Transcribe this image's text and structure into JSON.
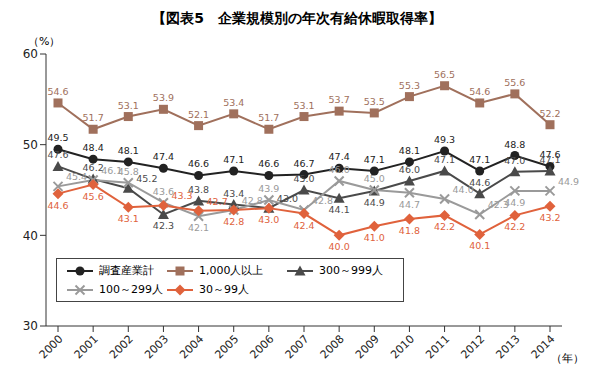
{
  "chart_data": {
    "type": "line",
    "title": "【図表5　企業規模別の年次有給休暇取得率】",
    "ylabel": "（%）",
    "xlabel": "（年）",
    "categories": [
      "2000",
      "2001",
      "2002",
      "2003",
      "2004",
      "2005",
      "2006",
      "2007",
      "2008",
      "2009",
      "2010",
      "2011",
      "2012",
      "2013",
      "2014"
    ],
    "ylim": [
      30,
      60
    ],
    "yticks": [
      30,
      40,
      50,
      60
    ],
    "grid": false,
    "legend": "lower left",
    "data_labels": true,
    "series": [
      {
        "name": "調査産業計",
        "color": "#222222",
        "marker": "circle",
        "values": [
          49.5,
          48.4,
          48.1,
          47.4,
          46.6,
          47.1,
          46.6,
          46.7,
          47.4,
          47.1,
          48.1,
          49.3,
          47.1,
          48.8,
          47.6
        ],
        "value_labels": [
          "49.5",
          "48.4",
          "48.1",
          "47.4",
          "46.6",
          "47.1",
          "46.6",
          "46.7",
          "47.4",
          "47.1",
          "48.1",
          "49.3",
          "47.1",
          "48.8",
          "47.6"
        ]
      },
      {
        "name": "1,000人以上",
        "color": "#a0705c",
        "marker": "square",
        "values": [
          54.6,
          51.7,
          53.1,
          53.9,
          52.1,
          53.4,
          51.7,
          53.1,
          53.7,
          53.5,
          55.3,
          56.5,
          54.6,
          55.6,
          52.2
        ],
        "value_labels": [
          "54.6",
          "51.7",
          "53.1",
          "53.9",
          "52.1",
          "53.4",
          "51.7",
          "53.1",
          "53.7",
          "53.5",
          "55.3",
          "56.5",
          "54.6",
          "55.6",
          "52.2"
        ]
      },
      {
        "name": "300～999人",
        "color": "#4a4a4a",
        "marker": "triangle",
        "values": [
          47.6,
          46.2,
          45.2,
          42.3,
          43.8,
          43.4,
          43.0,
          45.0,
          44.1,
          44.9,
          46.0,
          47.1,
          44.6,
          47.0,
          47.1
        ],
        "value_labels": [
          "47.6",
          "46.2",
          "45.2",
          "42.3",
          "43.8",
          "43.4",
          "43.0",
          "45.0",
          "44.1",
          "44.9",
          "46.0",
          "47.1",
          "44.6",
          "47.0",
          "47.1"
        ]
      },
      {
        "name": "100～299人",
        "color": "#9a9a9a",
        "marker": "x",
        "values": [
          45.4,
          46.1,
          45.8,
          43.6,
          42.1,
          42.8,
          43.9,
          42.8,
          46.0,
          45.0,
          44.7,
          44.0,
          42.3,
          44.9,
          44.9
        ],
        "value_labels": [
          "45.4",
          "46.1",
          "45.8",
          "43.6",
          "42.1",
          "42.8",
          "43.9",
          "42.8",
          "46.0",
          "45.0",
          "44.7",
          "44.0",
          "42.3",
          "44.9",
          "44.9"
        ]
      },
      {
        "name": "30～99人",
        "color": "#e0623c",
        "marker": "diamond",
        "values": [
          44.6,
          45.6,
          43.1,
          43.3,
          42.7,
          42.8,
          43.0,
          42.4,
          40.0,
          41.0,
          41.8,
          42.2,
          40.1,
          42.2,
          43.2
        ],
        "value_labels": [
          "44.6",
          "45.6",
          "43.1",
          "43.3",
          "42.7",
          "42.8",
          "43.0",
          "42.4",
          "40.0",
          "41.0",
          "41.8",
          "42.2",
          "40.1",
          "42.2",
          "43.2"
        ]
      }
    ]
  }
}
